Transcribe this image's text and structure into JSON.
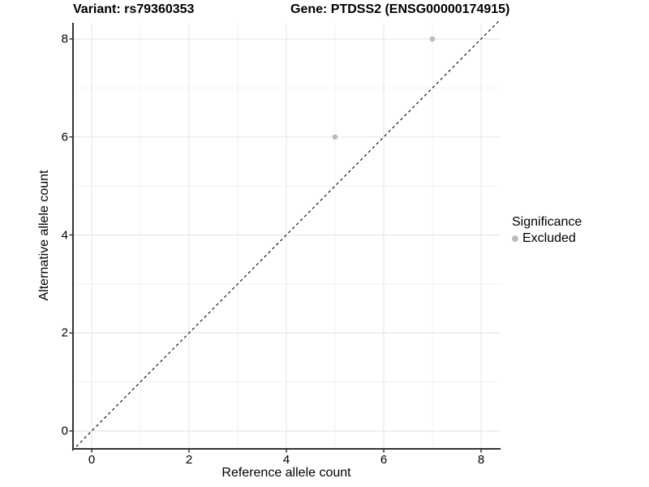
{
  "titles": {
    "left": "Variant: rs79360353",
    "right": "Gene: PTDSS2 (ENSG00000174915)"
  },
  "chart_data": {
    "type": "scatter",
    "title_left": "Variant: rs79360353",
    "title_right": "Gene: PTDSS2 (ENSG00000174915)",
    "xlabel": "Reference allele count",
    "ylabel": "Alternative allele count",
    "xlim": [
      -0.4,
      8.4
    ],
    "ylim": [
      -0.4,
      8.35
    ],
    "x_major_ticks": [
      0,
      2,
      4,
      6,
      8
    ],
    "x_minor_ticks": [
      1,
      3,
      5,
      7
    ],
    "y_major_ticks": [
      0,
      2,
      4,
      6,
      8
    ],
    "y_minor_ticks": [
      1,
      3,
      5,
      7
    ],
    "grid": true,
    "legend_position": "right",
    "series": [
      {
        "name": "Excluded",
        "color": "#bcbcbc",
        "points": [
          {
            "x": 5,
            "y": 6
          },
          {
            "x": 7,
            "y": 8
          }
        ]
      }
    ],
    "reference_line": {
      "type": "identity",
      "style": "dashed",
      "color": "#000000"
    }
  },
  "legend": {
    "title": "Significance",
    "entries": [
      {
        "label": "Excluded",
        "color": "#bcbcbc"
      }
    ]
  },
  "colors": {
    "point": "#bcbcbc",
    "axis_line": "#333333",
    "grid_major": "#e8e8e8",
    "grid_minor": "#f2f2f2",
    "diagonal": "#000000",
    "background": "#ffffff"
  }
}
